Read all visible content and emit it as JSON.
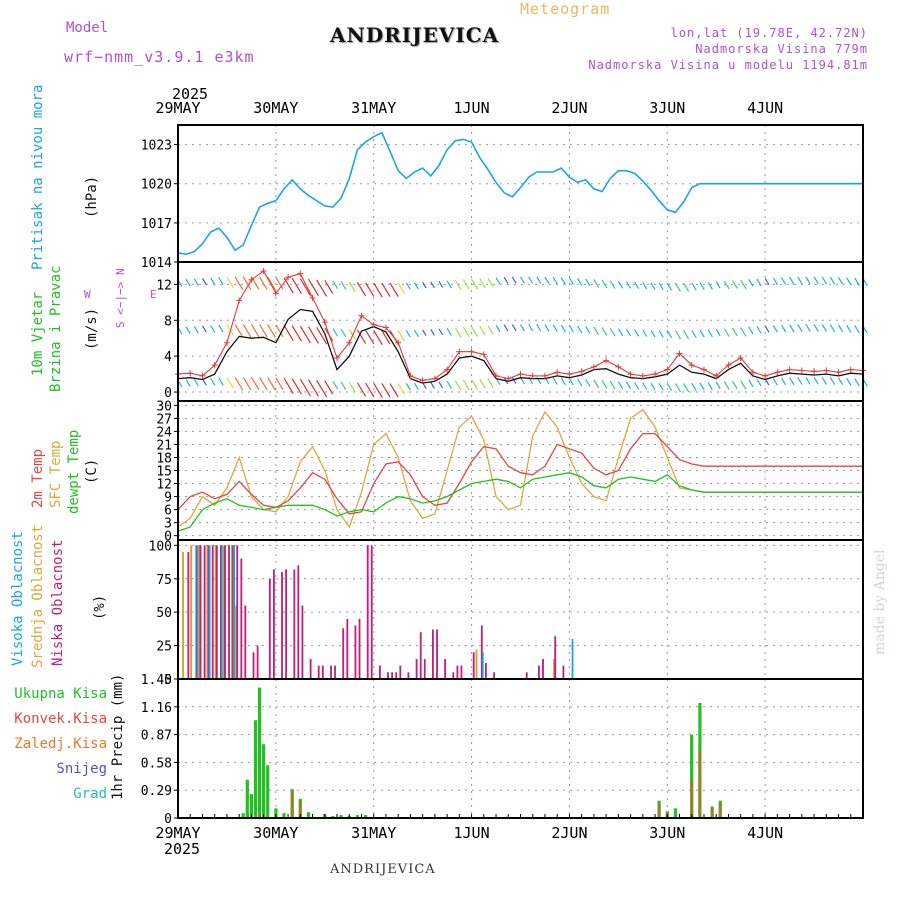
{
  "header": {
    "model_label": "Model",
    "model_name": "wrf−nmm_v3.9.1  e3km",
    "product": "Meteogram",
    "station": "ANDRIJEVICA",
    "lonlat": "lon,lat (19.78E, 42.72N)",
    "elevation": "Nadmorska Visina 779m",
    "model_elevation": "Nadmorska Visina u modelu 1194.81m",
    "footer_station": "ANDRIJEVICA",
    "watermark": "made by Angel"
  },
  "colors": {
    "pressure": "#1aa6e6",
    "wind_speed": "#111111",
    "wind_gust": "#e23b3b",
    "t2m": "#e64545",
    "sfc": "#e0a640",
    "dewpt": "#22c022",
    "high_cloud": "#1aa6e6",
    "mid_cloud": "#d4a030",
    "low_cloud": "#c0207a",
    "total_precip": "#22c022",
    "conv_precip": "#e64545",
    "frozen_precip": "#f07828"
  },
  "chart_data": [
    {
      "type": "line",
      "id": "pressure",
      "ylabel": "(hPa)",
      "side_label": "Pritisak na nivou mora",
      "yticks": [
        1014,
        1017,
        1020,
        1023
      ],
      "ylim": [
        1014,
        1024.5
      ],
      "x": [
        0,
        2,
        4,
        6,
        8,
        10,
        12,
        14,
        16,
        18,
        20,
        22,
        24,
        26,
        28,
        30,
        32,
        34,
        36,
        38,
        40,
        42,
        44,
        46,
        48,
        50,
        52,
        54,
        56,
        58,
        60,
        62,
        64,
        66,
        68,
        70,
        72,
        74,
        76,
        78,
        80,
        82,
        84,
        86,
        88,
        90,
        92,
        94,
        96,
        98,
        100,
        102,
        104,
        106,
        108,
        110,
        112,
        114,
        116,
        118,
        120,
        122,
        124,
        126,
        128,
        130,
        132,
        134,
        136,
        138,
        140,
        142,
        144,
        146,
        148,
        150,
        152,
        154,
        156,
        158,
        160,
        162,
        164,
        166,
        168
      ],
      "values": [
        1014.7,
        1014.6,
        1014.8,
        1015.4,
        1016.3,
        1016.6,
        1015.9,
        1014.9,
        1015.3,
        1016.8,
        1018.2,
        1018.5,
        1018.7,
        1019.6,
        1020.3,
        1019.6,
        1019.1,
        1018.7,
        1018.3,
        1018.2,
        1018.9,
        1020.4,
        1022.6,
        1023.2,
        1023.6,
        1023.9,
        1022.5,
        1021.0,
        1020.4,
        1020.9,
        1021.2,
        1020.6,
        1021.4,
        1022.6,
        1023.3,
        1023.4,
        1023.2,
        1022.0,
        1021.1,
        1020.1,
        1019.3,
        1019.0,
        1019.7,
        1020.5,
        1020.9,
        1020.9,
        1020.9,
        1021.2,
        1020.5,
        1020.1,
        1020.3,
        1019.6,
        1019.4,
        1020.4,
        1021.0,
        1021.0,
        1020.8,
        1020.2,
        1019.5,
        1018.7,
        1018.0,
        1017.8,
        1018.6,
        1019.7,
        1020.0,
        1020.0,
        1020.0,
        1020.0,
        1020.0,
        1020.0,
        1020.0,
        1020.0,
        1020.0,
        1020.0,
        1020.0,
        1020.0,
        1020.0,
        1020.0,
        1020.0,
        1020.0,
        1020.0,
        1020.0,
        1020.0,
        1020.0,
        1020.0
      ]
    },
    {
      "type": "line",
      "id": "wind",
      "ylabel": "(m/s)",
      "side_label_1": "10m Vjetar",
      "side_label_2": "Brzina i Pravac",
      "compass_ns": "S <−|−> N",
      "compass_w": "W",
      "compass_e": "E",
      "yticks": [
        0,
        4,
        8,
        12
      ],
      "ylim": [
        -1,
        14.5
      ],
      "x": [
        0,
        3,
        6,
        9,
        12,
        15,
        18,
        21,
        24,
        27,
        30,
        33,
        36,
        39,
        42,
        45,
        48,
        51,
        54,
        57,
        60,
        63,
        66,
        69,
        72,
        75,
        78,
        81,
        84,
        87,
        90,
        93,
        96,
        99,
        102,
        105,
        108,
        111,
        114,
        117,
        120,
        123,
        126,
        129,
        132,
        135,
        138,
        141,
        144,
        147,
        150,
        153,
        156,
        159,
        162,
        165,
        168
      ],
      "speed": [
        1.5,
        1.6,
        1.4,
        2.0,
        4.5,
        6.2,
        6.0,
        6.1,
        5.5,
        8.1,
        9.2,
        9.0,
        6.5,
        2.5,
        4.0,
        6.8,
        7.3,
        6.7,
        4.5,
        1.5,
        1.0,
        1.2,
        2.0,
        3.8,
        4.0,
        3.5,
        1.5,
        1.2,
        1.6,
        1.5,
        1.5,
        1.8,
        1.6,
        1.9,
        2.5,
        2.6,
        2.0,
        1.6,
        1.5,
        1.7,
        2.0,
        3.0,
        2.2,
        2.0,
        1.5,
        2.5,
        3.2,
        1.8,
        1.4,
        1.8,
        2.1,
        2.0,
        1.9,
        2.0,
        1.8,
        2.1,
        2.0
      ],
      "gust": [
        2.0,
        2.1,
        1.8,
        3.0,
        5.5,
        10.2,
        12.5,
        13.5,
        11.0,
        12.8,
        13.2,
        10.5,
        7.8,
        3.8,
        5.5,
        8.5,
        7.5,
        7.2,
        5.5,
        1.8,
        1.3,
        1.5,
        2.5,
        4.5,
        4.5,
        4.2,
        1.8,
        1.5,
        2.0,
        1.8,
        1.8,
        2.2,
        2.0,
        2.3,
        2.8,
        3.5,
        2.8,
        2.0,
        1.8,
        2.0,
        2.5,
        4.3,
        3.0,
        2.5,
        1.8,
        3.0,
        3.8,
        2.2,
        1.8,
        2.2,
        2.5,
        2.4,
        2.3,
        2.4,
        2.2,
        2.5,
        2.4
      ]
    },
    {
      "type": "line",
      "id": "temperature",
      "ylabel": "(C)",
      "side_label_1": "2m Temp",
      "side_label_2": "SFC Temp",
      "side_label_3": "dewpt Temp",
      "yticks": [
        0,
        3,
        6,
        9,
        12,
        15,
        18,
        21,
        24,
        27,
        30
      ],
      "ylim": [
        -1,
        31
      ],
      "x": [
        0,
        3,
        6,
        9,
        12,
        15,
        18,
        21,
        24,
        27,
        30,
        33,
        36,
        39,
        42,
        45,
        48,
        51,
        54,
        57,
        60,
        63,
        66,
        69,
        72,
        75,
        78,
        81,
        84,
        87,
        90,
        93,
        96,
        99,
        102,
        105,
        108,
        111,
        114,
        117,
        120,
        123,
        126,
        129,
        132,
        135,
        138,
        141,
        144,
        147,
        150,
        153,
        156,
        159,
        162,
        165,
        168
      ],
      "t2m": [
        6.0,
        9.0,
        10.0,
        8.5,
        9.5,
        12.5,
        9.5,
        7.0,
        6.5,
        8.0,
        11.0,
        14.5,
        13.0,
        8.5,
        5.0,
        5.5,
        12.0,
        16.5,
        17.0,
        14.0,
        9.0,
        7.0,
        7.5,
        12.0,
        17.0,
        20.5,
        20.0,
        16.0,
        14.5,
        14.0,
        16.0,
        21.0,
        20.0,
        19.0,
        15.5,
        14.0,
        15.0,
        20.0,
        23.5,
        23.5,
        20.5,
        17.5,
        16.5,
        16.0,
        16.0,
        16.0,
        16.0,
        16.0,
        16.0,
        16.0,
        16.0,
        16.0,
        16.0,
        16.0,
        16.0,
        16.0,
        16.0
      ],
      "sfc": [
        2.0,
        4.0,
        9.0,
        7.0,
        11.0,
        18.0,
        9.0,
        6.0,
        5.5,
        9.0,
        17.0,
        20.5,
        15.0,
        6.0,
        2.0,
        10.0,
        21.0,
        23.5,
        18.0,
        8.0,
        4.0,
        5.0,
        15.0,
        25.0,
        27.5,
        22.0,
        9.0,
        6.0,
        7.0,
        23.0,
        28.5,
        25.0,
        18.0,
        12.0,
        9.0,
        8.0,
        18.0,
        27.0,
        29.0,
        25.0,
        18.0,
        11.0,
        10.5,
        10.0,
        10.0,
        10.0,
        10.0,
        10.0,
        10.0,
        10.0,
        10.0,
        10.0,
        10.0,
        10.0,
        10.0,
        10.0,
        10.0
      ],
      "dewpt": [
        1.0,
        2.0,
        6.0,
        7.5,
        8.5,
        7.0,
        6.5,
        6.0,
        6.5,
        7.0,
        7.0,
        7.0,
        6.0,
        4.5,
        5.5,
        6.0,
        5.5,
        7.5,
        9.0,
        8.5,
        7.5,
        8.0,
        9.0,
        10.5,
        12.0,
        12.5,
        13.0,
        12.5,
        11.0,
        13.0,
        13.5,
        14.0,
        14.5,
        13.5,
        11.5,
        11.0,
        13.0,
        13.5,
        13.0,
        12.5,
        14.0,
        11.5,
        10.5,
        10.0,
        10.0,
        10.0,
        10.0,
        10.0,
        10.0,
        10.0,
        10.0,
        10.0,
        10.0,
        10.0,
        10.0,
        10.0,
        10.0
      ]
    },
    {
      "type": "bar",
      "id": "cloud",
      "ylabel": "(%)",
      "side_label_1": "Visoka Oblacnost",
      "side_label_2": "Srednja Oblacnost",
      "side_label_3": "Niska Oblacnost",
      "yticks": [
        0,
        25,
        50,
        75,
        100
      ],
      "ylim": [
        0,
        104
      ],
      "low": [
        [
          2,
          95
        ],
        [
          4,
          100
        ],
        [
          5,
          100
        ],
        [
          6,
          100
        ],
        [
          7,
          100
        ],
        [
          8,
          100
        ],
        [
          9,
          100
        ],
        [
          10,
          100
        ],
        [
          11,
          100
        ],
        [
          12,
          100
        ],
        [
          13,
          100
        ],
        [
          14,
          100
        ],
        [
          15,
          90
        ],
        [
          16,
          55
        ],
        [
          18,
          20
        ],
        [
          19,
          25
        ],
        [
          22,
          75
        ],
        [
          23,
          82
        ],
        [
          25,
          80
        ],
        [
          26,
          82
        ],
        [
          28,
          82
        ],
        [
          29,
          85
        ],
        [
          30,
          55
        ],
        [
          32,
          15
        ],
        [
          34,
          10
        ],
        [
          35,
          10
        ],
        [
          37,
          10
        ],
        [
          38,
          10
        ],
        [
          40,
          38
        ],
        [
          41,
          45
        ],
        [
          43,
          40
        ],
        [
          44,
          45
        ],
        [
          46,
          100
        ],
        [
          47,
          100
        ],
        [
          49,
          10
        ],
        [
          51,
          5
        ],
        [
          52,
          5
        ],
        [
          53,
          5
        ],
        [
          54,
          10
        ],
        [
          56,
          5
        ],
        [
          58,
          15
        ],
        [
          59,
          35
        ],
        [
          60,
          15
        ],
        [
          62,
          37
        ],
        [
          63,
          37
        ],
        [
          65,
          15
        ],
        [
          67,
          5
        ],
        [
          68,
          10
        ],
        [
          69,
          10
        ],
        [
          72,
          20
        ],
        [
          74,
          40
        ],
        [
          75,
          12
        ],
        [
          77,
          5
        ],
        [
          85,
          5
        ],
        [
          88,
          10
        ],
        [
          89,
          15
        ],
        [
          92,
          32
        ],
        [
          94,
          10
        ]
      ],
      "mid": [
        [
          1,
          95
        ],
        [
          3,
          100
        ],
        [
          5,
          100
        ],
        [
          7,
          100
        ],
        [
          9,
          100
        ],
        [
          11,
          100
        ],
        [
          13,
          100
        ],
        [
          14,
          55
        ],
        [
          73,
          22
        ],
        [
          92,
          15
        ]
      ],
      "high": [
        [
          4,
          100
        ],
        [
          7,
          100
        ],
        [
          10,
          100
        ],
        [
          13,
          100
        ],
        [
          74,
          20
        ],
        [
          96,
          30
        ]
      ]
    },
    {
      "type": "bar",
      "id": "precip",
      "ylabel": "1hr Precip (mm)",
      "legend": [
        "Ukupna Kisa",
        "Konvek.Kisa",
        "Zaledj.Kisa",
        "Snijeg",
        "Grad"
      ],
      "yticks": [
        0,
        0.29,
        0.58,
        0.87,
        1.16,
        1.45
      ],
      "ylim": [
        0,
        1.45
      ],
      "total": [
        [
          16,
          0.05
        ],
        [
          17,
          0.4
        ],
        [
          18,
          0.25
        ],
        [
          19,
          1.02
        ],
        [
          20,
          1.36
        ],
        [
          21,
          0.77
        ],
        [
          22,
          0.55
        ],
        [
          24,
          0.1
        ],
        [
          26,
          0.05
        ],
        [
          28,
          0.3
        ],
        [
          30,
          0.2
        ],
        [
          32,
          0.06
        ],
        [
          36,
          0.04
        ],
        [
          38,
          0.02
        ],
        [
          40,
          0.03
        ],
        [
          42,
          0.02
        ],
        [
          44,
          0.03
        ],
        [
          46,
          0.03
        ],
        [
          118,
          0.18
        ],
        [
          120,
          0.07
        ],
        [
          122,
          0.1
        ],
        [
          126,
          0.87
        ],
        [
          128,
          1.2
        ],
        [
          131,
          0.12
        ],
        [
          133,
          0.18
        ]
      ],
      "conv": [
        [
          20,
          0.05
        ],
        [
          28,
          0.28
        ],
        [
          30,
          0.18
        ],
        [
          118,
          0.15
        ],
        [
          120,
          0.05
        ],
        [
          126,
          0.4
        ],
        [
          128,
          0.7
        ],
        [
          131,
          0.1
        ],
        [
          133,
          0.16
        ]
      ]
    }
  ],
  "time_axis": {
    "year": "2025",
    "labels": [
      "29MAY",
      "30MAY",
      "31MAY",
      "1JUN",
      "2JUN",
      "3JUN",
      "4JUN"
    ]
  }
}
